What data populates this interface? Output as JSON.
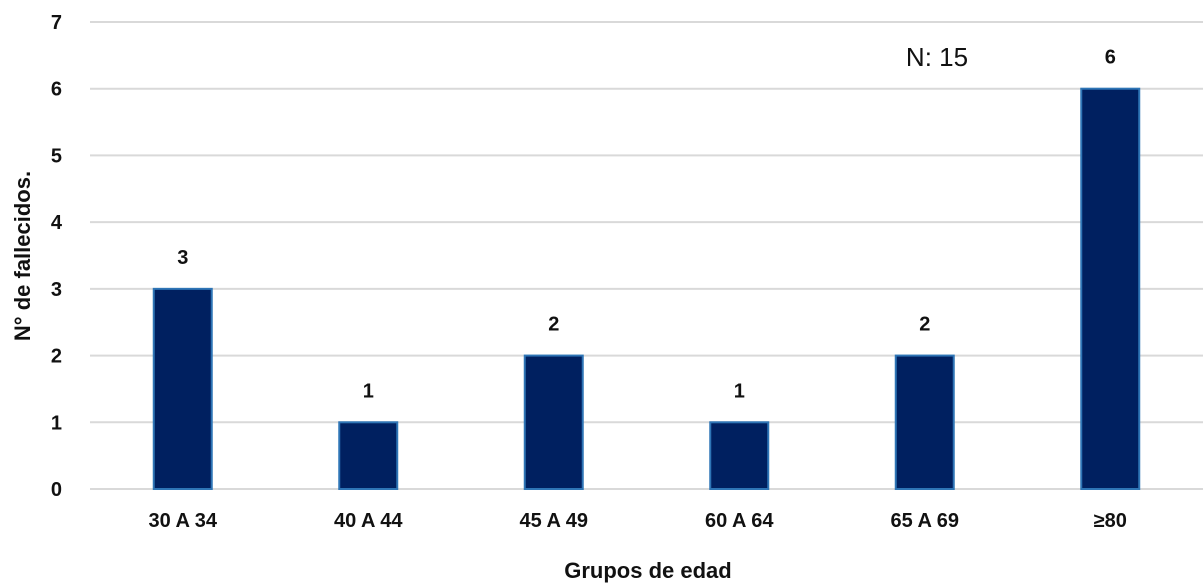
{
  "chart_data": {
    "type": "bar",
    "categories": [
      "30 A 34",
      "40 A 44",
      "45 A 49",
      "60 A 64",
      "65 A 69",
      "≥80"
    ],
    "values": [
      3,
      1,
      2,
      1,
      2,
      6
    ],
    "data_labels": [
      "3",
      "1",
      "2",
      "1",
      "2",
      "6"
    ],
    "xlabel": "Grupos de edad",
    "ylabel": "N° de fallecidos.",
    "ylim": [
      0,
      7
    ],
    "yticks": [
      "0",
      "1",
      "2",
      "3",
      "4",
      "5",
      "6",
      "7"
    ],
    "annotation": "N: 15",
    "grid": true,
    "legend": "none",
    "colors": {
      "bar_fill": "#002060",
      "bar_stroke": "#2e75b6",
      "gridline": "#d9d9d9",
      "text": "#111111"
    }
  }
}
